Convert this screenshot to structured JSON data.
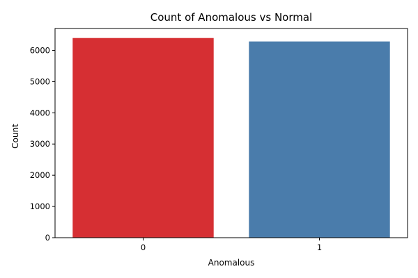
{
  "chart_data": {
    "type": "bar",
    "title": "Count of Anomalous vs Normal",
    "xlabel": "Anomalous",
    "ylabel": "Count",
    "categories": [
      "0",
      "1"
    ],
    "values": [
      6395,
      6285
    ],
    "colors": [
      "#d62f33",
      "#4a7cab"
    ],
    "ylim": [
      0,
      6700
    ],
    "yticks": [
      0,
      1000,
      2000,
      3000,
      4000,
      5000,
      6000
    ],
    "grid": false,
    "legend": "none"
  }
}
